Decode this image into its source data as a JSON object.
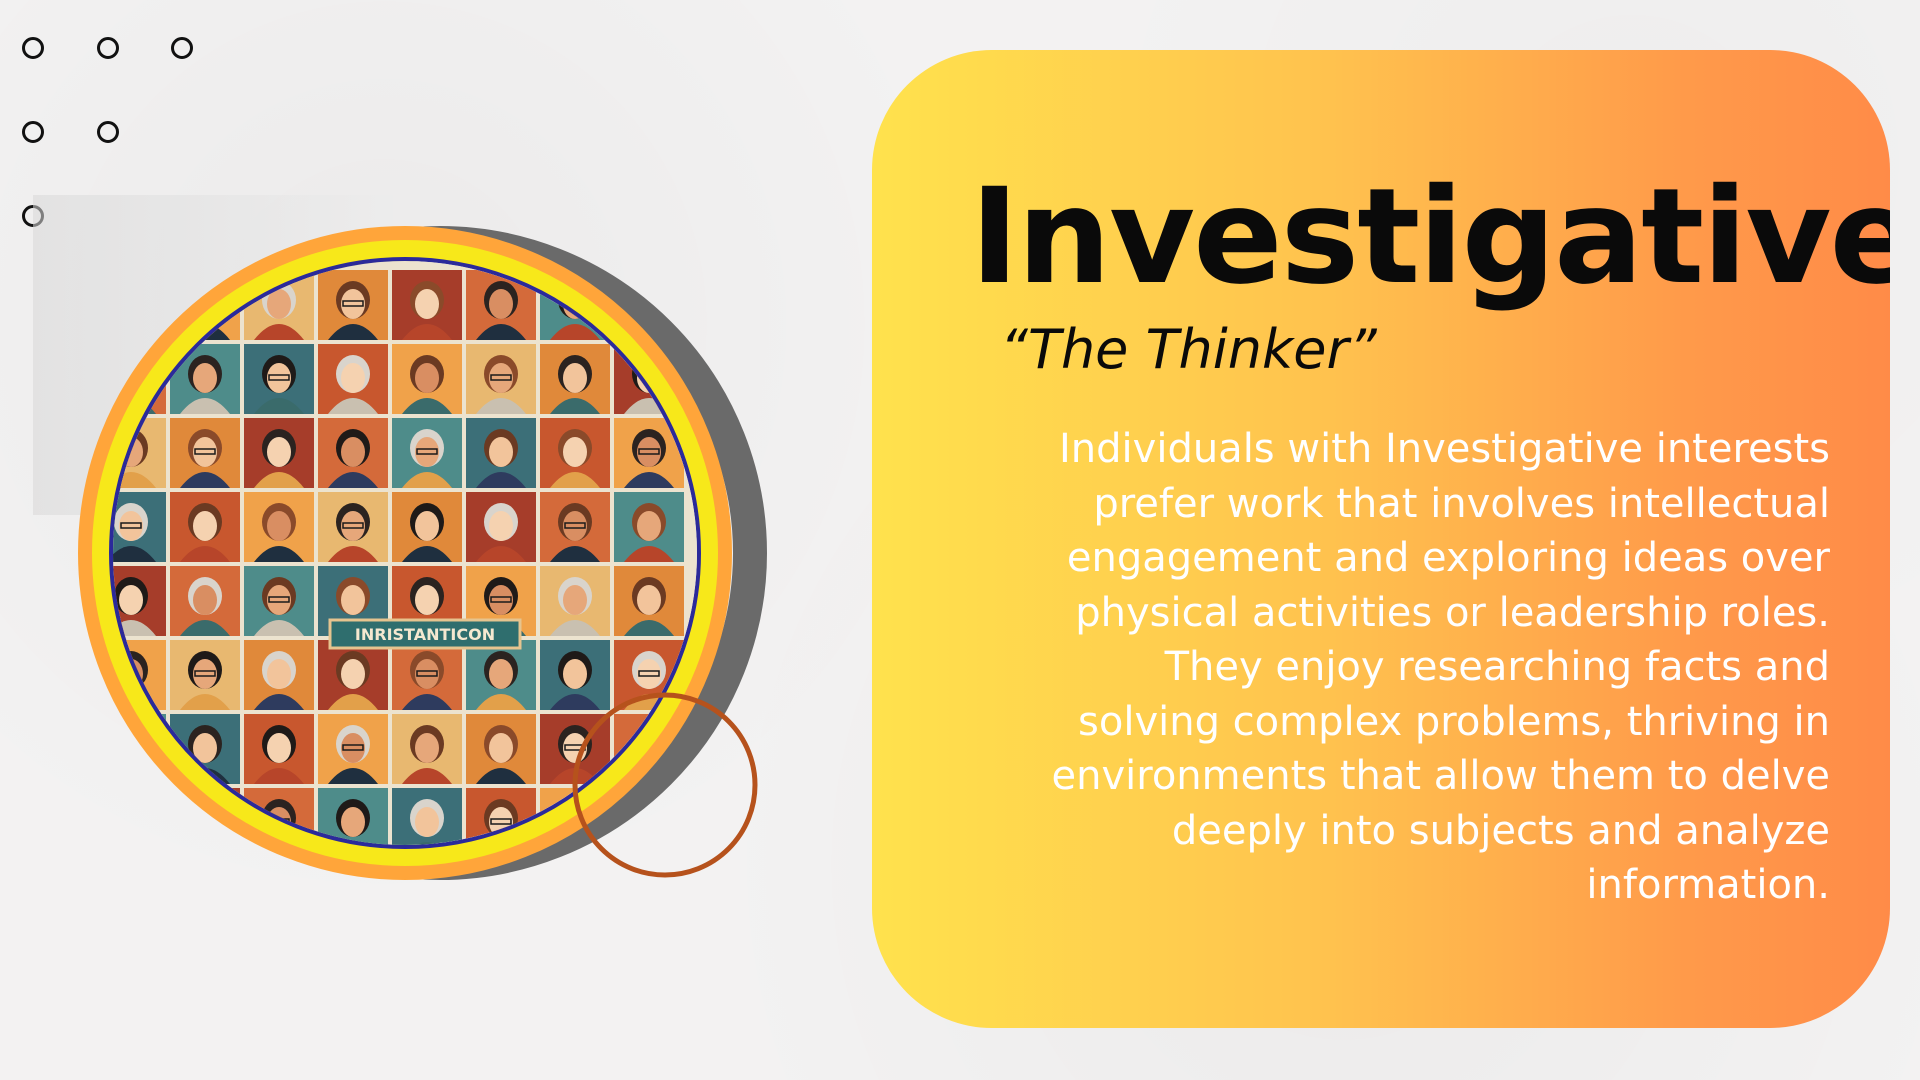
{
  "slide": {
    "title": "Investigative",
    "subtitle": "“The Thinker”",
    "body": "Individuals with Investigative interests prefer work that involves intellectual engagement and exploring ideas over physical activities or leadership roles. They enjoy researching facts and solving complex problems, thriving in environments that allow them to delve deeply into subjects and analyze information.",
    "image_sign_text": "INRISTANTICON"
  },
  "decorations": {
    "dots": "dot-pattern-icon",
    "ring": "accent-ring-icon"
  },
  "colors": {
    "card_gradient_start": "#ffe24d",
    "card_gradient_end": "#ff8b48",
    "ring_yellow": "#f7e81a",
    "ring_orange": "#ffa53a",
    "ring_gray": "#6b6b6b",
    "accent_ring": "#b6521c",
    "title": "#0a0a0a",
    "body_text": "#ffffff"
  }
}
